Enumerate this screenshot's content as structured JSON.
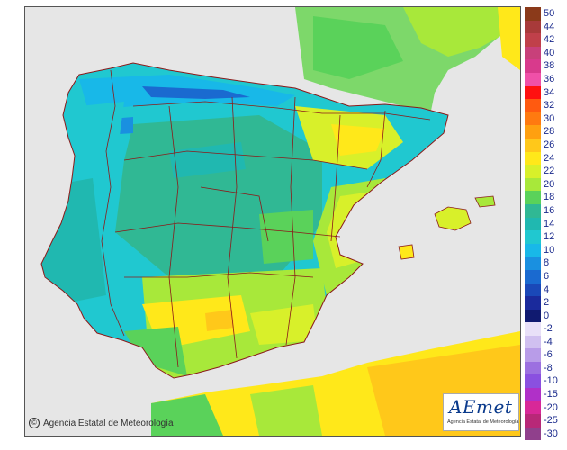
{
  "credit": {
    "symbol": "©",
    "text": "Agencia Estatal de Meteorología"
  },
  "logo": {
    "text": "AEmet",
    "subtitle": "Agencia Estatal de Meteorología"
  },
  "legend": {
    "positive": [
      {
        "label": "50",
        "color": "#8b3a1a"
      },
      {
        "label": "44",
        "color": "#a83a3a"
      },
      {
        "label": "42",
        "color": "#c0404a"
      },
      {
        "label": "40",
        "color": "#c8407a"
      },
      {
        "label": "38",
        "color": "#d83a8c"
      },
      {
        "label": "36",
        "color": "#f050a8"
      },
      {
        "label": "34",
        "color": "#ff1010"
      },
      {
        "label": "32",
        "color": "#ff5a10"
      },
      {
        "label": "30",
        "color": "#ff7a10"
      },
      {
        "label": "28",
        "color": "#ffa010"
      },
      {
        "label": "26",
        "color": "#ffc81a"
      },
      {
        "label": "24",
        "color": "#ffe81a"
      },
      {
        "label": "22",
        "color": "#d8f02a"
      },
      {
        "label": "20",
        "color": "#a8e83a"
      },
      {
        "label": "18",
        "color": "#5ad25a"
      },
      {
        "label": "16",
        "color": "#30b894"
      },
      {
        "label": "14",
        "color": "#20b8b0"
      },
      {
        "label": "12",
        "color": "#20c8d0"
      },
      {
        "label": "10",
        "color": "#18b8e8"
      },
      {
        "label": "8",
        "color": "#1a90e0"
      },
      {
        "label": "6",
        "color": "#1a6ad0"
      },
      {
        "label": "4",
        "color": "#1a48b8"
      },
      {
        "label": "2",
        "color": "#1a2a9c"
      },
      {
        "label": "0",
        "color": "#101a70"
      }
    ],
    "negative": [
      {
        "label": "-2",
        "color": "#e8e0f8"
      },
      {
        "label": "-4",
        "color": "#d0c0f0"
      },
      {
        "label": "-6",
        "color": "#b89ce8"
      },
      {
        "label": "-8",
        "color": "#9c70e0"
      },
      {
        "label": "-10",
        "color": "#8a50e0"
      },
      {
        "label": "-15",
        "color": "#b030c8"
      },
      {
        "label": "-20",
        "color": "#d82898"
      },
      {
        "label": "-25",
        "color": "#b82878"
      },
      {
        "label": "-30",
        "color": "#90408c"
      }
    ]
  }
}
